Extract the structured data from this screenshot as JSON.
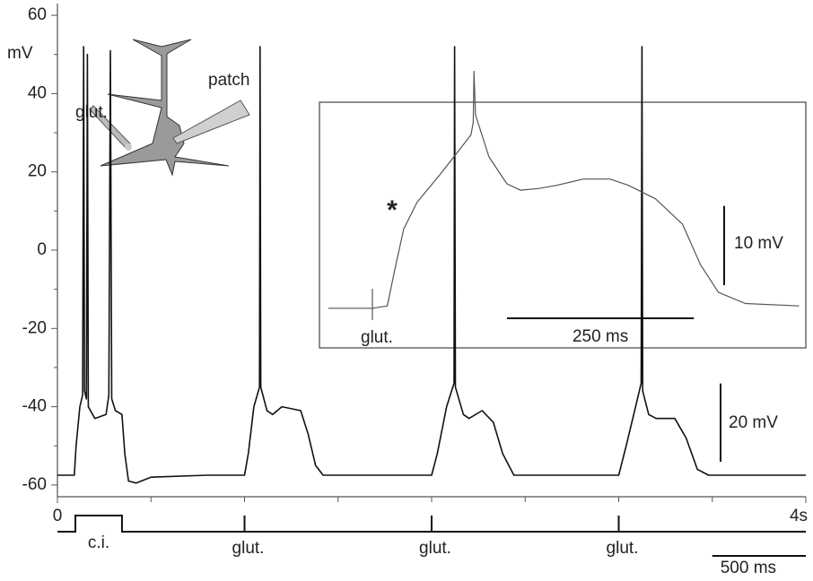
{
  "chart_data": {
    "type": "line",
    "y_label": "mV",
    "ylim": [
      -63,
      63
    ],
    "yticks": [
      -60,
      -40,
      -20,
      0,
      20,
      40,
      60
    ],
    "y_minor_ticks": [
      -50,
      -30,
      -10,
      10,
      30,
      50
    ],
    "xlim": [
      0,
      4
    ],
    "xticks": [
      {
        "value": 0,
        "label": "0"
      },
      {
        "value": 4,
        "label": "4s"
      }
    ],
    "x_minor_ticks": [
      0.5,
      1,
      1.5,
      2,
      2.5,
      3,
      3.5
    ],
    "color": "#111111",
    "x": [
      0,
      0.09,
      0.1,
      0.12,
      0.135,
      0.14,
      0.145,
      0.155,
      0.16,
      0.165,
      0.2,
      0.26,
      0.275,
      0.283,
      0.29,
      0.31,
      0.345,
      0.36,
      0.38,
      0.42,
      0.5,
      0.8,
      1.0,
      1.02,
      1.05,
      1.08,
      1.083,
      1.087,
      1.12,
      1.15,
      1.2,
      1.3,
      1.34,
      1.38,
      1.42,
      2.0,
      2.03,
      2.08,
      2.12,
      2.123,
      2.127,
      2.17,
      2.2,
      2.27,
      2.33,
      2.38,
      2.44,
      3.0,
      3.04,
      3.09,
      3.12,
      3.124,
      3.128,
      3.16,
      3.2,
      3.3,
      3.36,
      3.42,
      3.48,
      4.0
    ],
    "values": [
      -57.5,
      -57.5,
      -50,
      -40,
      -37,
      52,
      -36,
      -38,
      50,
      -40,
      -43,
      -42,
      -37,
      51,
      -38,
      -41,
      -42,
      -52,
      -59,
      -59.5,
      -58,
      -57.5,
      -57.5,
      -52,
      -40,
      -35,
      52,
      -35,
      -41,
      -42,
      -40,
      -41,
      -47,
      -55,
      -57.5,
      -57.5,
      -52,
      -40,
      -34,
      52,
      -35,
      -42,
      -43,
      -41,
      -44,
      -52,
      -57.5,
      -57.5,
      -50,
      -40,
      -34,
      52,
      -36,
      -42,
      -43,
      -43,
      -48,
      -56,
      -57.5,
      -57.5
    ],
    "scale_bars": [
      {
        "label": "20 mV",
        "value": 20,
        "axis": "y"
      },
      {
        "label": "500 ms",
        "value": 0.5,
        "axis": "x"
      }
    ],
    "stimulus": {
      "ci": {
        "label": "c.i.",
        "start": 0.096,
        "end": 0.345
      },
      "glut": {
        "labels": [
          "glut.",
          "glut.",
          "glut."
        ],
        "x": [
          1,
          2,
          3
        ]
      }
    },
    "annotations": {
      "glut": "glut.",
      "patch": "patch"
    },
    "inset": {
      "type": "line",
      "xlim": [
        -60,
        580
      ],
      "ylim": [
        -5,
        26
      ],
      "color": "#555555",
      "x": [
        -59,
        0,
        20,
        30,
        42,
        60,
        90,
        114,
        132,
        135,
        136,
        138,
        156,
        180,
        198,
        222,
        246,
        282,
        318,
        343,
        379,
        415,
        439,
        463,
        499,
        571
      ],
      "values": [
        0,
        0,
        0.3,
        4.9,
        10,
        13.4,
        16.8,
        19.7,
        21.9,
        23.5,
        29.9,
        24.4,
        19.1,
        15.7,
        14.9,
        15.1,
        15.5,
        16.3,
        16.3,
        15.5,
        13.8,
        10.6,
        5.5,
        2,
        0.6,
        0.3
      ],
      "stimulus_label": "glut.",
      "marker": "*",
      "scale_bars": [
        {
          "label": "10 mV",
          "value": 10,
          "axis": "y"
        },
        {
          "label": "250 ms",
          "value": 250,
          "axis": "x"
        }
      ]
    }
  }
}
